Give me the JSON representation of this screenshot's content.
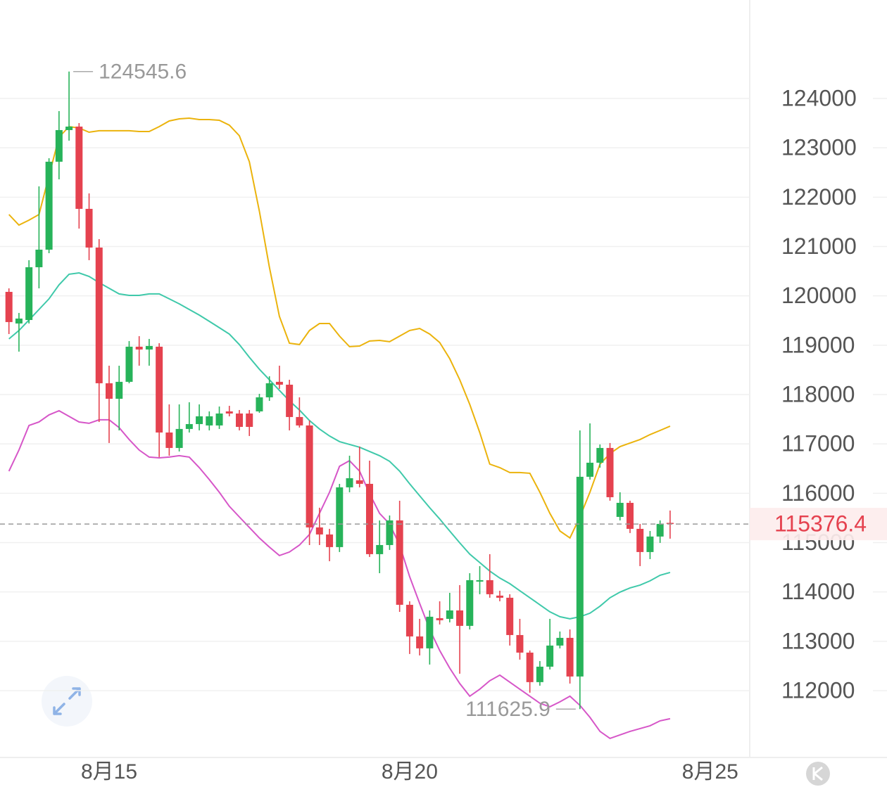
{
  "chart_data": {
    "type": "candlestick",
    "categories": [
      null,
      null,
      null,
      null,
      null,
      null,
      null,
      null,
      null,
      null,
      "8月15",
      null,
      null,
      null,
      null,
      null,
      null,
      null,
      null,
      null,
      null,
      null,
      null,
      null,
      null,
      null,
      null,
      null,
      null,
      null,
      null,
      null,
      null,
      null,
      null,
      null,
      null,
      null,
      null,
      null,
      "8月20",
      null,
      null,
      null,
      null,
      null,
      null,
      null,
      null,
      null,
      null,
      null,
      null,
      null,
      null,
      null,
      null,
      null,
      null,
      null,
      null,
      null,
      null,
      null,
      null,
      null,
      null,
      null,
      null,
      null,
      "8月25"
    ],
    "open": [
      120081,
      119440,
      119511,
      120580,
      120936,
      122718,
      123359,
      123430,
      121763,
      120979,
      118229,
      117915,
      118258,
      118970,
      118913,
      118970,
      117231,
      116918,
      117303,
      117402,
      117374,
      117374,
      117659,
      117616,
      117616,
      117659,
      117944,
      118258,
      118200,
      117545,
      117374,
      115308,
      115165,
      114909,
      116120,
      116262,
      116191,
      114766,
      114951,
      115450,
      113740,
      113099,
      112857,
      113469,
      113455,
      113626,
      113313,
      114210,
      114239,
      113926,
      113883,
      113127,
      112771,
      112173,
      112486,
      112914,
      113070,
      112287,
      116334,
      116619,
      116918,
      115521,
      115806,
      115279,
      114809,
      115123,
      115400,
      null,
      null,
      null,
      null
    ],
    "high": [
      120152,
      119654,
      120722,
      122219,
      122789,
      123744,
      124545.6,
      123501,
      122076,
      121150,
      118585,
      118585,
      119084,
      119184,
      119127,
      119041,
      117801,
      117801,
      117844,
      117801,
      117659,
      117758,
      117772,
      117687,
      117687,
      118015,
      118371,
      118585,
      118300,
      117944,
      117474,
      115707,
      115279,
      116191,
      116761,
      116947,
      116661,
      115450,
      115550,
      115849,
      113811,
      113455,
      113626,
      113811,
      113982,
      114139,
      114381,
      114524,
      114766,
      114025,
      113954,
      113455,
      112814,
      112600,
      113455,
      113199,
      113241,
      117274,
      117416,
      116989,
      117018,
      116020,
      115849,
      115379,
      115236,
      115450,
      115650,
      null,
      null,
      null,
      null
    ],
    "low": [
      119226,
      118870,
      119440,
      120152,
      120865,
      122361,
      123145,
      121364,
      120723,
      117445,
      117018,
      117274,
      118229,
      118585,
      118585,
      116733,
      116761,
      116847,
      117231,
      117274,
      117274,
      117303,
      117559,
      117274,
      117160,
      117630,
      117872,
      118115,
      117274,
      117331,
      114951,
      114951,
      114623,
      114809,
      116020,
      116120,
      114709,
      114381,
      114852,
      113597,
      112743,
      112714,
      112529,
      113341,
      113384,
      112344,
      113241,
      113954,
      113883,
      113811,
      112914,
      112629,
      111959,
      112101,
      112429,
      112857,
      112144,
      111625.9,
      116277,
      116519,
      115849,
      115450,
      115194,
      114524,
      114666,
      114994,
      115080,
      null,
      null,
      null,
      null
    ],
    "close": [
      119469,
      119540,
      120580,
      120936,
      122718,
      123359,
      123430,
      121763,
      120979,
      118229,
      117915,
      118258,
      118970,
      118913,
      118984,
      117231,
      116918,
      117303,
      117402,
      117559,
      117559,
      117616,
      117616,
      117345,
      117345,
      117944,
      118229,
      118200,
      117545,
      117374,
      115308,
      115165,
      114909,
      116120,
      116305,
      116191,
      114766,
      114951,
      115450,
      113740,
      113099,
      112857,
      113498,
      113427,
      113626,
      113313,
      114239,
      114239,
      113954,
      113883,
      113127,
      112771,
      112173,
      112486,
      112914,
      113070,
      112287,
      116334,
      116619,
      116918,
      115920,
      115806,
      115279,
      114809,
      115123,
      115379,
      115376.4,
      null,
      null,
      null,
      null
    ],
    "up_color": "#27b35a",
    "down_color": "#e5424f",
    "bands": [
      {
        "color": "#ebb30c",
        "values": [
          121649,
          121435,
          121535,
          121649,
          122433,
          123216,
          123430,
          123402,
          123316,
          123345,
          123345,
          123345,
          123345,
          123330,
          123330,
          123430,
          123544,
          123587,
          123601,
          123573,
          123573,
          123558,
          123459,
          123245,
          122718,
          121720,
          120580,
          119583,
          119041,
          119013,
          119298,
          119440,
          119440,
          119184,
          118970,
          118984,
          119084,
          119098,
          119070,
          119184,
          119298,
          119340,
          119226,
          119055,
          118728,
          118300,
          117801,
          117231,
          116590,
          116519,
          116419,
          116419,
          116405,
          116020,
          115593,
          115236,
          115094,
          115521,
          116020,
          116590,
          116804,
          116946,
          117018,
          117089,
          117189,
          117274,
          117360,
          null,
          null,
          null,
          null
        ]
      },
      {
        "color": "#3fc9aa",
        "values": [
          119127,
          119298,
          119511,
          119725,
          119939,
          120224,
          120438,
          120466,
          120395,
          120267,
          120153,
          120039,
          120010,
          120010,
          120039,
          120039,
          119939,
          119839,
          119725,
          119611,
          119483,
          119355,
          119226,
          119013,
          118756,
          118514,
          118300,
          118086,
          117873,
          117687,
          117474,
          117303,
          117160,
          117046,
          116989,
          116932,
          116847,
          116761,
          116647,
          116448,
          116191,
          115949,
          115707,
          115479,
          115236,
          114994,
          114766,
          114595,
          114424,
          114282,
          114168,
          114025,
          113883,
          113740,
          113598,
          113498,
          113455,
          113498,
          113569,
          113712,
          113883,
          113997,
          114082,
          114139,
          114225,
          114339,
          114396,
          null,
          null,
          null,
          null
        ]
      },
      {
        "color": "#d656c8",
        "values": [
          116448,
          116875,
          117374,
          117445,
          117588,
          117673,
          117559,
          117445,
          117417,
          117488,
          117488,
          117331,
          117089,
          116875,
          116733,
          116718,
          116733,
          116761,
          116733,
          116519,
          116277,
          116020,
          115735,
          115521,
          115308,
          115094,
          114909,
          114738,
          114809,
          114951,
          115165,
          115593,
          116020,
          116547,
          116661,
          116448,
          115992,
          115593,
          115379,
          114951,
          114310,
          113769,
          113241,
          112814,
          112458,
          112144,
          111888,
          112030,
          112201,
          112315,
          112173,
          112030,
          111888,
          111745,
          111674,
          111774,
          111888,
          111702,
          111460,
          111175,
          111033,
          111104,
          111175,
          111232,
          111289,
          111389,
          111432,
          null,
          null,
          null,
          null
        ]
      }
    ],
    "ylim": [
      110675,
      125995
    ],
    "yticks": [
      112000,
      113000,
      114000,
      115000,
      116000,
      117000,
      118000,
      119000,
      120000,
      121000,
      122000,
      123000,
      124000
    ],
    "grid": true
  }
}
